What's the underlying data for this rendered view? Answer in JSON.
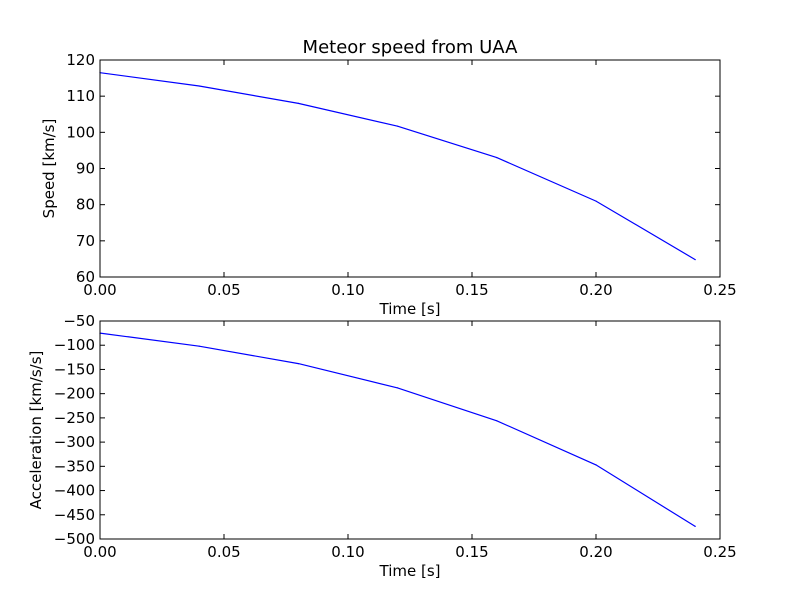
{
  "figure": {
    "title": "Meteor speed from  UAA"
  },
  "chart_data": [
    {
      "type": "line",
      "title": "Meteor speed from  UAA",
      "xlabel": "Time [s]",
      "ylabel": "Speed [km/s]",
      "xlim": [
        0,
        0.25
      ],
      "ylim": [
        60,
        120
      ],
      "xticks": [
        0.0,
        0.05,
        0.1,
        0.15,
        0.2,
        0.25
      ],
      "xtick_labels": [
        "0.00",
        "0.05",
        "0.10",
        "0.15",
        "0.20",
        "0.25"
      ],
      "yticks": [
        60,
        70,
        80,
        90,
        100,
        110,
        120
      ],
      "ytick_labels": [
        "60",
        "70",
        "80",
        "90",
        "100",
        "110",
        "120"
      ],
      "grid": false,
      "series": [
        {
          "color": "#0000ff",
          "x": [
            0.0,
            0.04,
            0.08,
            0.12,
            0.16,
            0.2,
            0.24
          ],
          "y": [
            116.5,
            112.8,
            108.0,
            101.7,
            93.0,
            81.0,
            64.8
          ]
        }
      ]
    },
    {
      "type": "line",
      "title": "",
      "xlabel": "Time [s]",
      "ylabel": "Acceleration [km/s/s]",
      "xlim": [
        0,
        0.25
      ],
      "ylim": [
        -500,
        -50
      ],
      "xticks": [
        0.0,
        0.05,
        0.1,
        0.15,
        0.2,
        0.25
      ],
      "xtick_labels": [
        "0.00",
        "0.05",
        "0.10",
        "0.15",
        "0.20",
        "0.25"
      ],
      "yticks": [
        -500,
        -450,
        -400,
        -350,
        -300,
        -250,
        -200,
        -150,
        -100,
        -50
      ],
      "ytick_labels": [
        "−500",
        "−450",
        "−400",
        "−350",
        "−300",
        "−250",
        "−200",
        "−150",
        "−100",
        "−50"
      ],
      "grid": false,
      "series": [
        {
          "color": "#0000ff",
          "x": [
            0.0,
            0.04,
            0.08,
            0.12,
            0.16,
            0.2,
            0.24
          ],
          "y": [
            -75,
            -102,
            -138,
            -188,
            -256,
            -347,
            -474
          ]
        }
      ]
    }
  ]
}
